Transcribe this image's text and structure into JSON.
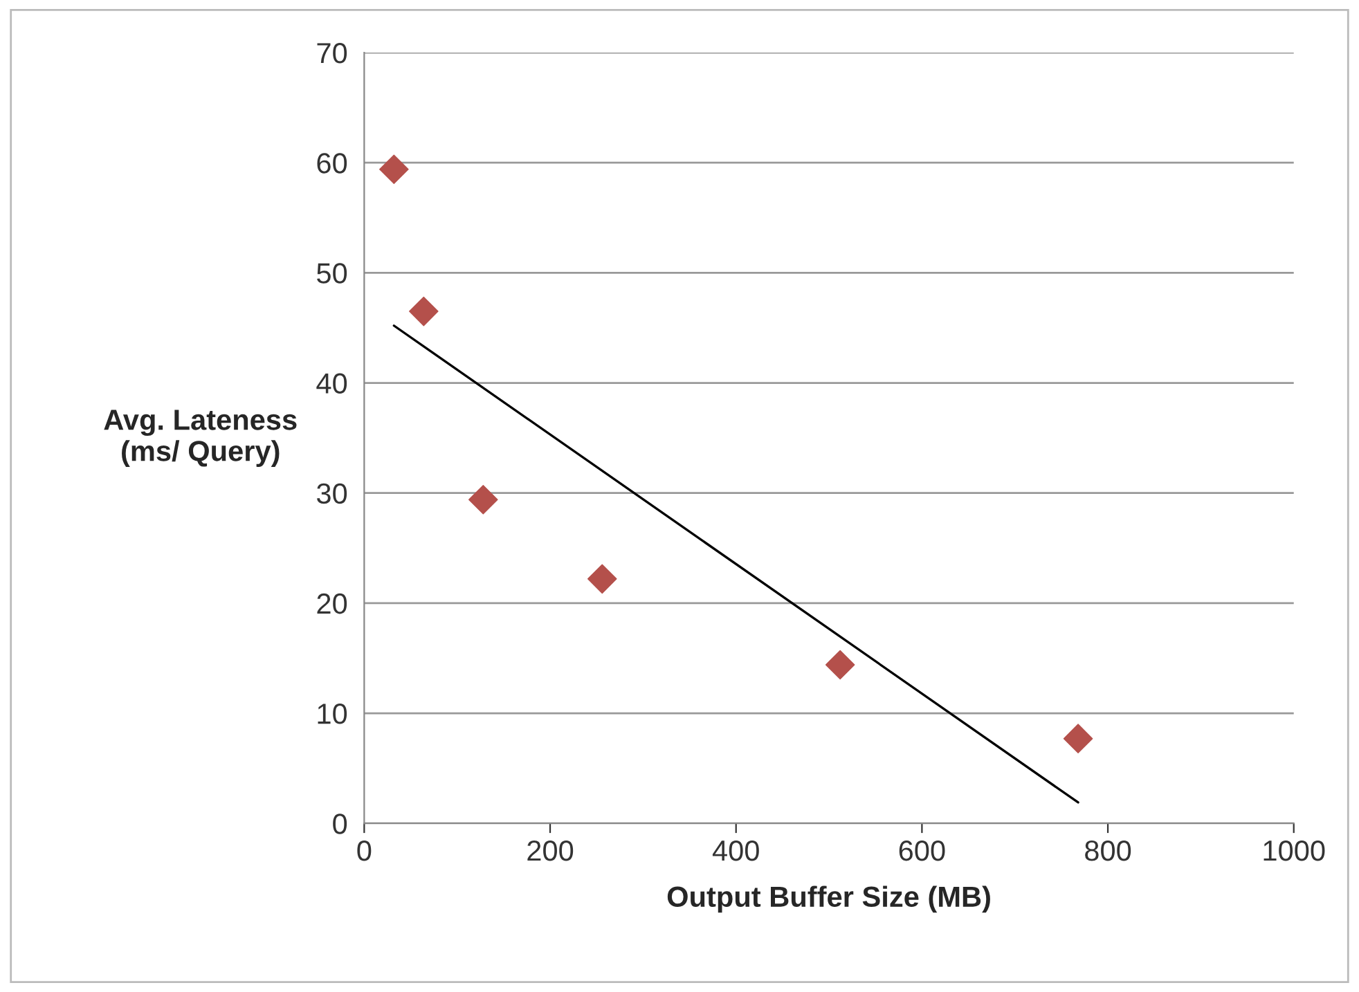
{
  "chart_data": {
    "type": "scatter",
    "xlabel": "Output Buffer Size (MB)",
    "ylabel": "Avg. Lateness\n(ms/ Query)",
    "series": [
      {
        "color": "#b4504b",
        "marker": "diamond",
        "x": [
          32,
          64,
          128,
          256,
          512,
          768
        ],
        "values": [
          59.4,
          46.5,
          29.4,
          22.2,
          14.4,
          7.7
        ]
      },
      {
        "type": "line",
        "color": "#000000",
        "marker": "none",
        "line_style": "solid",
        "x": [
          32,
          768
        ],
        "values": [
          45.2,
          1.9
        ]
      }
    ],
    "xlim": [
      0,
      1000
    ],
    "xticks": [
      0,
      200,
      400,
      600,
      800,
      1000
    ],
    "ylim": [
      0,
      70
    ],
    "yticks": [
      0,
      10,
      20,
      30,
      40,
      50,
      60,
      70
    ],
    "grid": "y",
    "legend": false
  }
}
